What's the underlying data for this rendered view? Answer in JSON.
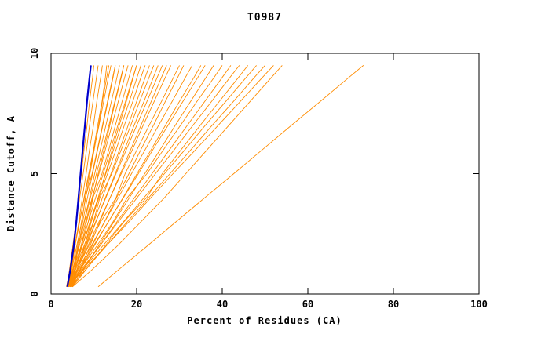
{
  "chart_data": {
    "type": "line",
    "title": "T0987",
    "xlabel": "Percent of Residues (CA)",
    "ylabel": "Distance Cutoff, A",
    "xlim": [
      0,
      100
    ],
    "ylim": [
      0,
      10
    ],
    "xticks": [
      0,
      20,
      40,
      60,
      80,
      100
    ],
    "yticks": [
      0,
      5,
      10
    ],
    "grid": false,
    "legend": "none",
    "colors": {
      "model": "#ff8c00",
      "best": "#0000cd",
      "frame": "#000000"
    },
    "cutoffs": [
      0.3,
      1,
      2,
      3,
      4,
      5,
      6,
      7,
      8,
      9,
      9.5
    ],
    "series": [
      {
        "values": [
          4.0,
          4.5,
          5.1,
          5.8,
          6.4,
          7.1,
          7.7,
          8.4,
          9.0,
          9.7,
          10.0
        ]
      },
      {
        "values": [
          3.8,
          4.3,
          5.1,
          5.9,
          6.7,
          7.5,
          8.3,
          9.0,
          9.8,
          10.6,
          11.0
        ]
      },
      {
        "values": [
          4.2,
          4.8,
          5.6,
          6.5,
          7.3,
          8.2,
          9.0,
          9.9,
          10.7,
          11.6,
          12.0
        ]
      },
      {
        "values": [
          4.0,
          4.7,
          5.6,
          6.7,
          7.7,
          8.8,
          9.9,
          10.9,
          11.9,
          12.7,
          13.0
        ]
      },
      {
        "values": [
          4.5,
          5.2,
          6.2,
          7.1,
          8.1,
          9.1,
          10.1,
          11.1,
          12.0,
          13.0,
          13.5
        ]
      },
      {
        "values": [
          3.6,
          4.4,
          5.5,
          6.6,
          7.8,
          8.9,
          10.0,
          11.2,
          12.3,
          13.4,
          14.0
        ]
      },
      {
        "values": [
          4.0,
          4.8,
          6.0,
          7.2,
          8.0,
          9.6,
          10.8,
          12.0,
          13.2,
          14.4,
          15.0
        ]
      },
      {
        "values": [
          5.0,
          5.5,
          6.4,
          7.4,
          8.5,
          9.7,
          10.9,
          12.1,
          13.3,
          14.5,
          15.0
        ]
      },
      {
        "values": [
          4.2,
          5.1,
          6.4,
          7.7,
          9.0,
          10.2,
          11.5,
          12.8,
          14.1,
          15.4,
          16.0
        ]
      },
      {
        "values": [
          4.0,
          5.0,
          6.4,
          7.8,
          9.2,
          10.6,
          12.1,
          13.5,
          14.9,
          16.3,
          17.0
        ]
      },
      {
        "values": [
          4.8,
          5.7,
          7.0,
          8.3,
          9.7,
          11.0,
          12.4,
          13.7,
          15.0,
          16.4,
          17.0
        ]
      },
      {
        "values": [
          4.0,
          5.1,
          6.6,
          8.1,
          9.6,
          11.2,
          12.7,
          14.2,
          15.7,
          17.2,
          18.0
        ]
      },
      {
        "values": [
          4.4,
          5.5,
          7.1,
          8.7,
          9.8,
          11.9,
          13.5,
          15.0,
          16.6,
          18.2,
          19.0
        ]
      },
      {
        "values": [
          4.0,
          5.2,
          7.0,
          8.7,
          10.4,
          12.2,
          13.9,
          15.6,
          17.4,
          19.1,
          20.0
        ]
      },
      {
        "values": [
          5.0,
          6.1,
          7.8,
          9.4,
          11.0,
          12.7,
          14.3,
          15.9,
          17.6,
          19.2,
          20.0
        ]
      },
      {
        "values": [
          4.2,
          5.5,
          7.3,
          9.1,
          11.0,
          12.8,
          14.6,
          16.4,
          18.3,
          20.1,
          21.0
        ]
      },
      {
        "values": [
          4.0,
          5.4,
          7.3,
          9.3,
          11.2,
          13.2,
          15.2,
          17.1,
          19.1,
          21.0,
          22.0
        ]
      },
      {
        "values": [
          4.6,
          6.0,
          8.0,
          10.0,
          12.0,
          14.0,
          16.0,
          18.0,
          20.0,
          22.0,
          23.0
        ]
      },
      {
        "values": [
          4.0,
          5.5,
          7.7,
          9.9,
          11.4,
          14.2,
          16.4,
          18.6,
          20.7,
          22.9,
          24.0
        ]
      },
      {
        "values": [
          4.5,
          6.1,
          8.3,
          10.5,
          12.7,
          15.0,
          17.2,
          19.4,
          21.7,
          23.9,
          25.0
        ]
      },
      {
        "values": [
          4.0,
          5.7,
          8.1,
          10.4,
          12.8,
          15.2,
          17.6,
          20.0,
          22.4,
          24.8,
          26.0
        ]
      },
      {
        "values": [
          5.0,
          6.7,
          9.1,
          11.4,
          13.8,
          16.2,
          18.6,
          21.0,
          23.4,
          25.8,
          27.0
        ]
      },
      {
        "values": [
          4.2,
          6.0,
          8.6,
          11.2,
          13.8,
          16.4,
          19.0,
          21.5,
          24.1,
          26.7,
          28.0
        ]
      },
      {
        "values": [
          4.0,
          6.0,
          8.8,
          11.6,
          15.2,
          17.3,
          20.1,
          22.9,
          25.8,
          28.6,
          30.0
        ]
      },
      {
        "values": [
          4.8,
          6.8,
          9.6,
          12.5,
          15.3,
          18.2,
          21.0,
          23.9,
          26.7,
          29.6,
          31.0
        ]
      },
      {
        "values": [
          4.0,
          6.2,
          9.4,
          12.5,
          15.7,
          18.8,
          22.0,
          25.1,
          28.3,
          31.4,
          33.0
        ]
      },
      {
        "values": [
          4.5,
          6.8,
          10.1,
          13.4,
          16.8,
          20.1,
          23.4,
          26.7,
          30.0,
          33.4,
          35.0
        ]
      },
      {
        "values": [
          4.0,
          6.4,
          9.9,
          13.4,
          16.9,
          20.4,
          23.8,
          27.3,
          30.8,
          34.3,
          36.0
        ]
      },
      {
        "values": [
          5.0,
          7.5,
          11.1,
          14.7,
          18.3,
          21.9,
          25.5,
          29.0,
          32.6,
          36.2,
          38.0
        ]
      },
      {
        "values": [
          4.0,
          6.7,
          10.7,
          14.5,
          17.8,
          22.4,
          26.3,
          30.2,
          34.1,
          38.1,
          40.0
        ]
      },
      {
        "values": [
          4.4,
          7.3,
          11.4,
          15.4,
          19.5,
          23.6,
          27.7,
          31.8,
          35.9,
          40.0,
          42.0
        ]
      },
      {
        "values": [
          4.0,
          7.0,
          11.4,
          15.7,
          20.1,
          24.4,
          28.8,
          33.1,
          37.5,
          41.8,
          44.0
        ]
      },
      {
        "values": [
          5.0,
          8.1,
          12.6,
          17.0,
          22.3,
          26.0,
          30.4,
          34.8,
          39.3,
          43.8,
          46.0
        ]
      },
      {
        "values": [
          4.0,
          7.3,
          12.1,
          16.9,
          21.7,
          26.5,
          31.3,
          36.0,
          40.8,
          45.6,
          48.0
        ]
      },
      {
        "values": [
          4.5,
          8.0,
          12.9,
          17.8,
          22.8,
          27.8,
          32.7,
          37.6,
          42.6,
          47.5,
          50.0
        ]
      },
      {
        "values": [
          4.0,
          7.6,
          12.9,
          18.2,
          23.3,
          28.5,
          33.8,
          39.0,
          44.2,
          49.4,
          52.0
        ]
      },
      {
        "values": [
          5.0,
          9.5,
          15.5,
          21.0,
          26.5,
          31.5,
          36.5,
          41.5,
          46.5,
          51.5,
          54.0
        ]
      },
      {
        "values": [
          11.0,
          15.7,
          22.5,
          29.2,
          35.9,
          42.7,
          49.4,
          56.1,
          62.9,
          69.6,
          73.0
        ]
      }
    ],
    "best_series": {
      "values": [
        3.8,
        4.5,
        5.3,
        5.9,
        6.4,
        6.9,
        7.4,
        7.9,
        8.4,
        9.0,
        9.3
      ]
    }
  }
}
